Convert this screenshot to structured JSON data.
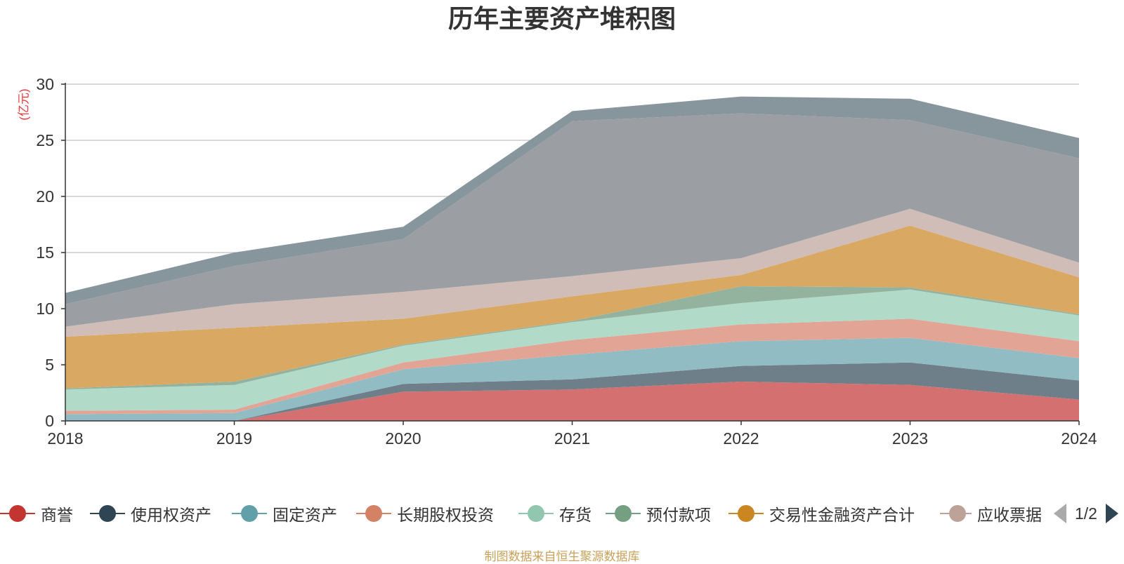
{
  "chart_data": {
    "type": "area",
    "stacked": true,
    "title": "历年主要资产堆积图",
    "unit_label": "(亿元)",
    "x": [
      "2018",
      "2019",
      "2020",
      "2021",
      "2022",
      "2023",
      "2024"
    ],
    "ylim": [
      0,
      30
    ],
    "yticks": [
      0,
      5,
      10,
      15,
      20,
      25,
      30
    ],
    "grid": true,
    "legend_position": "bottom",
    "series": [
      {
        "name": "商誉",
        "color": "#d4706f",
        "marker_color": "#c23531",
        "values": [
          0.0,
          0.0,
          2.6,
          2.8,
          3.5,
          3.2,
          1.9
        ]
      },
      {
        "name": "使用权资产",
        "color": "#6e7f8a",
        "marker_color": "#2f4554",
        "values": [
          0.0,
          0.0,
          0.7,
          0.9,
          1.4,
          2.0,
          1.7
        ]
      },
      {
        "name": "固定资产",
        "color": "#92bcc4",
        "marker_color": "#61a0a8",
        "values": [
          0.6,
          0.7,
          1.3,
          2.2,
          2.2,
          2.2,
          2.0
        ]
      },
      {
        "name": "长期股权投资",
        "color": "#e2a595",
        "marker_color": "#d48265",
        "values": [
          0.3,
          0.3,
          0.6,
          1.3,
          1.5,
          1.7,
          1.5
        ]
      },
      {
        "name": "存货",
        "color": "#b2dac9",
        "marker_color": "#91c7ae",
        "values": [
          1.9,
          2.2,
          1.5,
          1.6,
          1.9,
          2.6,
          2.3
        ]
      },
      {
        "name": "预付款项",
        "color": "#93b39f",
        "marker_color": "#749f83",
        "values": [
          0.1,
          0.3,
          0.1,
          0.1,
          1.5,
          0.2,
          0.1
        ]
      },
      {
        "name": "交易性金融资产合计",
        "color": "#d9a963",
        "marker_color": "#ca8622",
        "values": [
          4.6,
          4.8,
          2.3,
          2.2,
          1.0,
          5.5,
          3.3
        ]
      },
      {
        "name": "应收票据",
        "color": "#d1bdb7",
        "marker_color": "#bda29a",
        "values": [
          0.9,
          2.1,
          2.4,
          1.8,
          1.5,
          1.5,
          1.3
        ]
      },
      {
        "name": "",
        "color": "#9b9ea2",
        "marker_color": "#6e7074",
        "values": [
          2.0,
          3.4,
          4.7,
          13.8,
          12.9,
          7.9,
          9.3
        ]
      },
      {
        "name": "",
        "color": "#87959c",
        "marker_color": "#546570",
        "values": [
          1.0,
          1.2,
          1.1,
          0.9,
          1.5,
          1.9,
          1.8
        ]
      }
    ]
  },
  "legend": {
    "items": [
      {
        "label": "商誉",
        "color": "#c23531"
      },
      {
        "label": "使用权资产",
        "color": "#2f4554"
      },
      {
        "label": "固定资产",
        "color": "#61a0a8"
      },
      {
        "label": "长期股权投资",
        "color": "#d48265"
      },
      {
        "label": "存货",
        "color": "#91c7ae"
      },
      {
        "label": "预付款项",
        "color": "#749f83"
      },
      {
        "label": "交易性金融资产合计",
        "color": "#ca8622"
      },
      {
        "label": "应收票据",
        "color": "#bda29a"
      }
    ],
    "page": "1/2"
  },
  "footer": "制图数据来自恒生聚源数据库"
}
